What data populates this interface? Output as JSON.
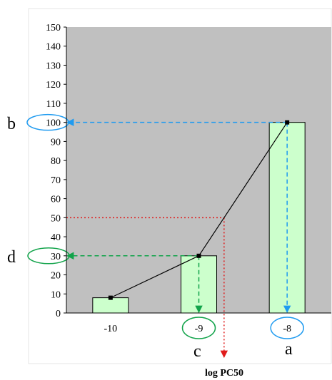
{
  "chart_data": {
    "type": "bar",
    "categories": [
      "-10",
      "-9",
      "-8"
    ],
    "values": [
      8,
      30,
      100
    ],
    "line_overlay": true,
    "xlabel": "log PC50",
    "ylabel": "",
    "ylim": [
      0,
      150
    ],
    "yticks": [
      0,
      10,
      20,
      30,
      40,
      50,
      60,
      70,
      80,
      90,
      100,
      110,
      120,
      130,
      140,
      150
    ],
    "background": "#c0c0c0",
    "bar_fill": "#ccffcc",
    "annotations": {
      "a": "a",
      "b": "b",
      "c": "c",
      "d": "d"
    },
    "guides": {
      "blue_level": 100,
      "green_level": 30,
      "red_level": 50,
      "blue_color": "#1f9bf0",
      "green_color": "#11a34a",
      "red_color": "#e01b1b"
    }
  }
}
